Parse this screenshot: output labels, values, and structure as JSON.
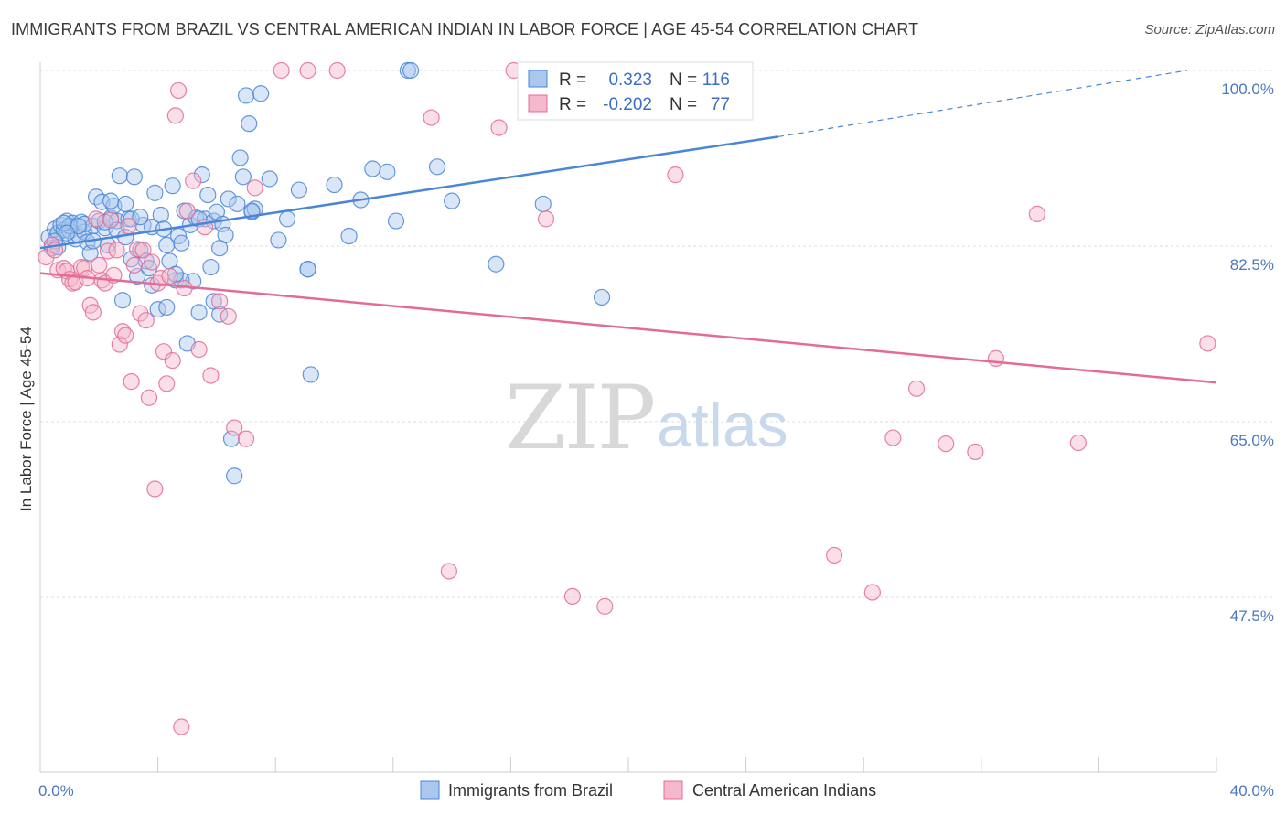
{
  "title": "IMMIGRANTS FROM BRAZIL VS CENTRAL AMERICAN INDIAN IN LABOR FORCE | AGE 45-54 CORRELATION CHART",
  "source": "Source: ZipAtlas.com",
  "watermark": {
    "part1": "ZIP",
    "part2": "atlas"
  },
  "legend": {
    "rows": [
      {
        "r_label": "R =",
        "r_value": "0.323",
        "n_label": "N =",
        "n_value": "116"
      },
      {
        "r_label": "R =",
        "r_value": "-0.202",
        "n_label": "N =",
        "n_value": "77"
      }
    ]
  },
  "chart_data": {
    "type": "scatter",
    "ylabel": "In Labor Force | Age 45-54",
    "xlim": [
      0,
      40
    ],
    "ylim": [
      30,
      102
    ],
    "x_tick_labels": [
      {
        "value": 0,
        "label": "0.0%"
      },
      {
        "value": 40,
        "label": "40.0%"
      }
    ],
    "y_tick_labels": [
      {
        "value": 100,
        "label": "100.0%"
      },
      {
        "value": 82.5,
        "label": "82.5%"
      },
      {
        "value": 65,
        "label": "65.0%"
      },
      {
        "value": 47.5,
        "label": "47.5%"
      }
    ],
    "gridlines": [
      100,
      82.5,
      65,
      47.5
    ],
    "series": [
      {
        "name": "Immigrants from Brazil",
        "color": "#4a86d6",
        "fill": "#aac8ee",
        "trend": {
          "x0": 0,
          "y0": 82.3,
          "x1": 25.1,
          "y1": 93.4,
          "dashed_to_x": 39.0,
          "dashed_to_y": 100.0
        },
        "points": [
          [
            0.3,
            83.4
          ],
          [
            0.4,
            82.3
          ],
          [
            0.5,
            84.2
          ],
          [
            0.6,
            83.8
          ],
          [
            0.7,
            84.6
          ],
          [
            0.8,
            84.1
          ],
          [
            0.9,
            85.0
          ],
          [
            1.0,
            84.0
          ],
          [
            1.1,
            84.8
          ],
          [
            1.2,
            83.2
          ],
          [
            1.3,
            83.6
          ],
          [
            1.4,
            84.9
          ],
          [
            1.5,
            83.9
          ],
          [
            1.6,
            82.9
          ],
          [
            1.7,
            81.8
          ],
          [
            1.8,
            84.5
          ],
          [
            1.9,
            87.4
          ],
          [
            2.0,
            85.0
          ],
          [
            2.1,
            86.9
          ],
          [
            2.2,
            84.3
          ],
          [
            2.3,
            82.6
          ],
          [
            2.4,
            85.3
          ],
          [
            2.5,
            86.5
          ],
          [
            2.6,
            85.0
          ],
          [
            2.7,
            89.5
          ],
          [
            2.8,
            77.1
          ],
          [
            2.9,
            86.7
          ],
          [
            3.0,
            85.2
          ],
          [
            3.1,
            81.2
          ],
          [
            3.2,
            89.4
          ],
          [
            3.3,
            79.5
          ],
          [
            3.4,
            82.1
          ],
          [
            3.5,
            84.6
          ],
          [
            3.6,
            81.0
          ],
          [
            3.7,
            80.3
          ],
          [
            3.8,
            84.4
          ],
          [
            3.9,
            87.8
          ],
          [
            4.0,
            76.2
          ],
          [
            4.1,
            85.6
          ],
          [
            4.2,
            84.2
          ],
          [
            4.3,
            82.6
          ],
          [
            4.4,
            81.0
          ],
          [
            4.5,
            88.5
          ],
          [
            4.6,
            79.1
          ],
          [
            4.7,
            83.5
          ],
          [
            4.8,
            82.8
          ],
          [
            4.9,
            86.0
          ],
          [
            5.0,
            72.8
          ],
          [
            5.1,
            84.6
          ],
          [
            5.2,
            79.0
          ],
          [
            5.3,
            85.3
          ],
          [
            5.4,
            75.9
          ],
          [
            5.5,
            89.6
          ],
          [
            5.6,
            85.2
          ],
          [
            5.7,
            87.6
          ],
          [
            5.8,
            80.4
          ],
          [
            5.9,
            85.0
          ],
          [
            6.0,
            85.9
          ],
          [
            6.1,
            75.7
          ],
          [
            6.2,
            84.7
          ],
          [
            6.3,
            83.6
          ],
          [
            6.4,
            87.2
          ],
          [
            6.5,
            63.3
          ],
          [
            6.6,
            59.6
          ],
          [
            6.7,
            86.7
          ],
          [
            6.8,
            91.3
          ],
          [
            6.9,
            89.4
          ],
          [
            7.0,
            97.5
          ],
          [
            7.1,
            94.7
          ],
          [
            7.2,
            85.9
          ],
          [
            7.3,
            86.2
          ],
          [
            7.5,
            97.7
          ],
          [
            7.8,
            89.2
          ],
          [
            8.1,
            83.1
          ],
          [
            8.4,
            85.2
          ],
          [
            8.8,
            88.1
          ],
          [
            9.1,
            80.2
          ],
          [
            9.2,
            69.7
          ],
          [
            10.0,
            88.6
          ],
          [
            10.5,
            83.5
          ],
          [
            10.9,
            87.1
          ],
          [
            11.3,
            90.2
          ],
          [
            11.8,
            89.9
          ],
          [
            12.1,
            85.0
          ],
          [
            12.5,
            100.0
          ],
          [
            12.6,
            100.0
          ],
          [
            13.5,
            90.4
          ],
          [
            14.0,
            87.0
          ],
          [
            15.5,
            80.7
          ],
          [
            16.5,
            100.0
          ],
          [
            17.1,
            86.7
          ],
          [
            19.1,
            77.4
          ],
          [
            21.9,
            100.0
          ],
          [
            2.2,
            84.9
          ],
          [
            1.0,
            84.5
          ],
          [
            1.5,
            84.7
          ],
          [
            0.8,
            84.8
          ],
          [
            2.6,
            84.1
          ],
          [
            1.3,
            84.5
          ],
          [
            0.6,
            82.4
          ],
          [
            3.1,
            85.2
          ],
          [
            4.8,
            79.1
          ],
          [
            5.9,
            77.0
          ],
          [
            4.3,
            76.4
          ],
          [
            3.8,
            78.6
          ],
          [
            9.1,
            80.2
          ],
          [
            7.2,
            86.0
          ],
          [
            6.1,
            82.3
          ],
          [
            5.4,
            85.2
          ],
          [
            4.6,
            79.7
          ],
          [
            3.4,
            85.4
          ],
          [
            2.9,
            83.4
          ],
          [
            0.9,
            83.8
          ],
          [
            1.8,
            83.0
          ],
          [
            2.4,
            87.0
          ],
          [
            0.5,
            83.0
          ]
        ]
      },
      {
        "name": "Central American Indians",
        "color": "#e46b95",
        "fill": "#f5b8cc",
        "trend": {
          "x0": 0,
          "y0": 79.8,
          "x1": 40,
          "y1": 68.9
        },
        "points": [
          [
            0.2,
            81.4
          ],
          [
            0.4,
            82.6
          ],
          [
            0.5,
            82.1
          ],
          [
            0.6,
            80.1
          ],
          [
            0.8,
            80.3
          ],
          [
            0.9,
            80.0
          ],
          [
            1.0,
            79.2
          ],
          [
            1.1,
            78.8
          ],
          [
            1.2,
            78.9
          ],
          [
            1.4,
            80.4
          ],
          [
            1.5,
            80.3
          ],
          [
            1.6,
            79.3
          ],
          [
            1.7,
            76.6
          ],
          [
            1.8,
            75.9
          ],
          [
            1.9,
            85.2
          ],
          [
            2.0,
            80.6
          ],
          [
            2.1,
            79.1
          ],
          [
            2.2,
            78.8
          ],
          [
            2.3,
            82.0
          ],
          [
            2.4,
            85.1
          ],
          [
            2.5,
            79.6
          ],
          [
            2.6,
            82.1
          ],
          [
            2.7,
            72.7
          ],
          [
            2.8,
            74.0
          ],
          [
            2.9,
            73.6
          ],
          [
            3.0,
            84.5
          ],
          [
            3.1,
            69.0
          ],
          [
            3.2,
            80.6
          ],
          [
            3.3,
            82.2
          ],
          [
            3.4,
            75.8
          ],
          [
            3.5,
            82.1
          ],
          [
            3.6,
            75.1
          ],
          [
            3.7,
            67.4
          ],
          [
            3.8,
            80.9
          ],
          [
            3.9,
            58.3
          ],
          [
            4.0,
            78.8
          ],
          [
            4.1,
            79.3
          ],
          [
            4.2,
            72.0
          ],
          [
            4.3,
            68.8
          ],
          [
            4.4,
            79.5
          ],
          [
            4.5,
            71.1
          ],
          [
            4.6,
            95.5
          ],
          [
            4.7,
            98.0
          ],
          [
            4.8,
            34.6
          ],
          [
            4.9,
            78.3
          ],
          [
            5.0,
            86.0
          ],
          [
            5.2,
            89.0
          ],
          [
            5.4,
            72.2
          ],
          [
            5.6,
            84.4
          ],
          [
            5.8,
            69.6
          ],
          [
            6.1,
            77.0
          ],
          [
            6.4,
            75.5
          ],
          [
            6.6,
            64.4
          ],
          [
            7.0,
            63.3
          ],
          [
            7.3,
            88.3
          ],
          [
            8.2,
            100.0
          ],
          [
            9.1,
            100.0
          ],
          [
            10.1,
            100.0
          ],
          [
            13.3,
            95.3
          ],
          [
            13.9,
            50.1
          ],
          [
            15.6,
            94.3
          ],
          [
            16.1,
            100.0
          ],
          [
            17.2,
            85.2
          ],
          [
            18.1,
            47.6
          ],
          [
            19.2,
            46.6
          ],
          [
            21.6,
            89.6
          ],
          [
            23.4,
            100.0
          ],
          [
            27.0,
            51.7
          ],
          [
            28.3,
            48.0
          ],
          [
            29.0,
            63.4
          ],
          [
            29.8,
            68.3
          ],
          [
            30.8,
            62.8
          ],
          [
            31.8,
            62.0
          ],
          [
            32.5,
            71.3
          ],
          [
            33.9,
            85.7
          ],
          [
            35.3,
            62.9
          ],
          [
            39.7,
            72.8
          ]
        ]
      }
    ]
  }
}
